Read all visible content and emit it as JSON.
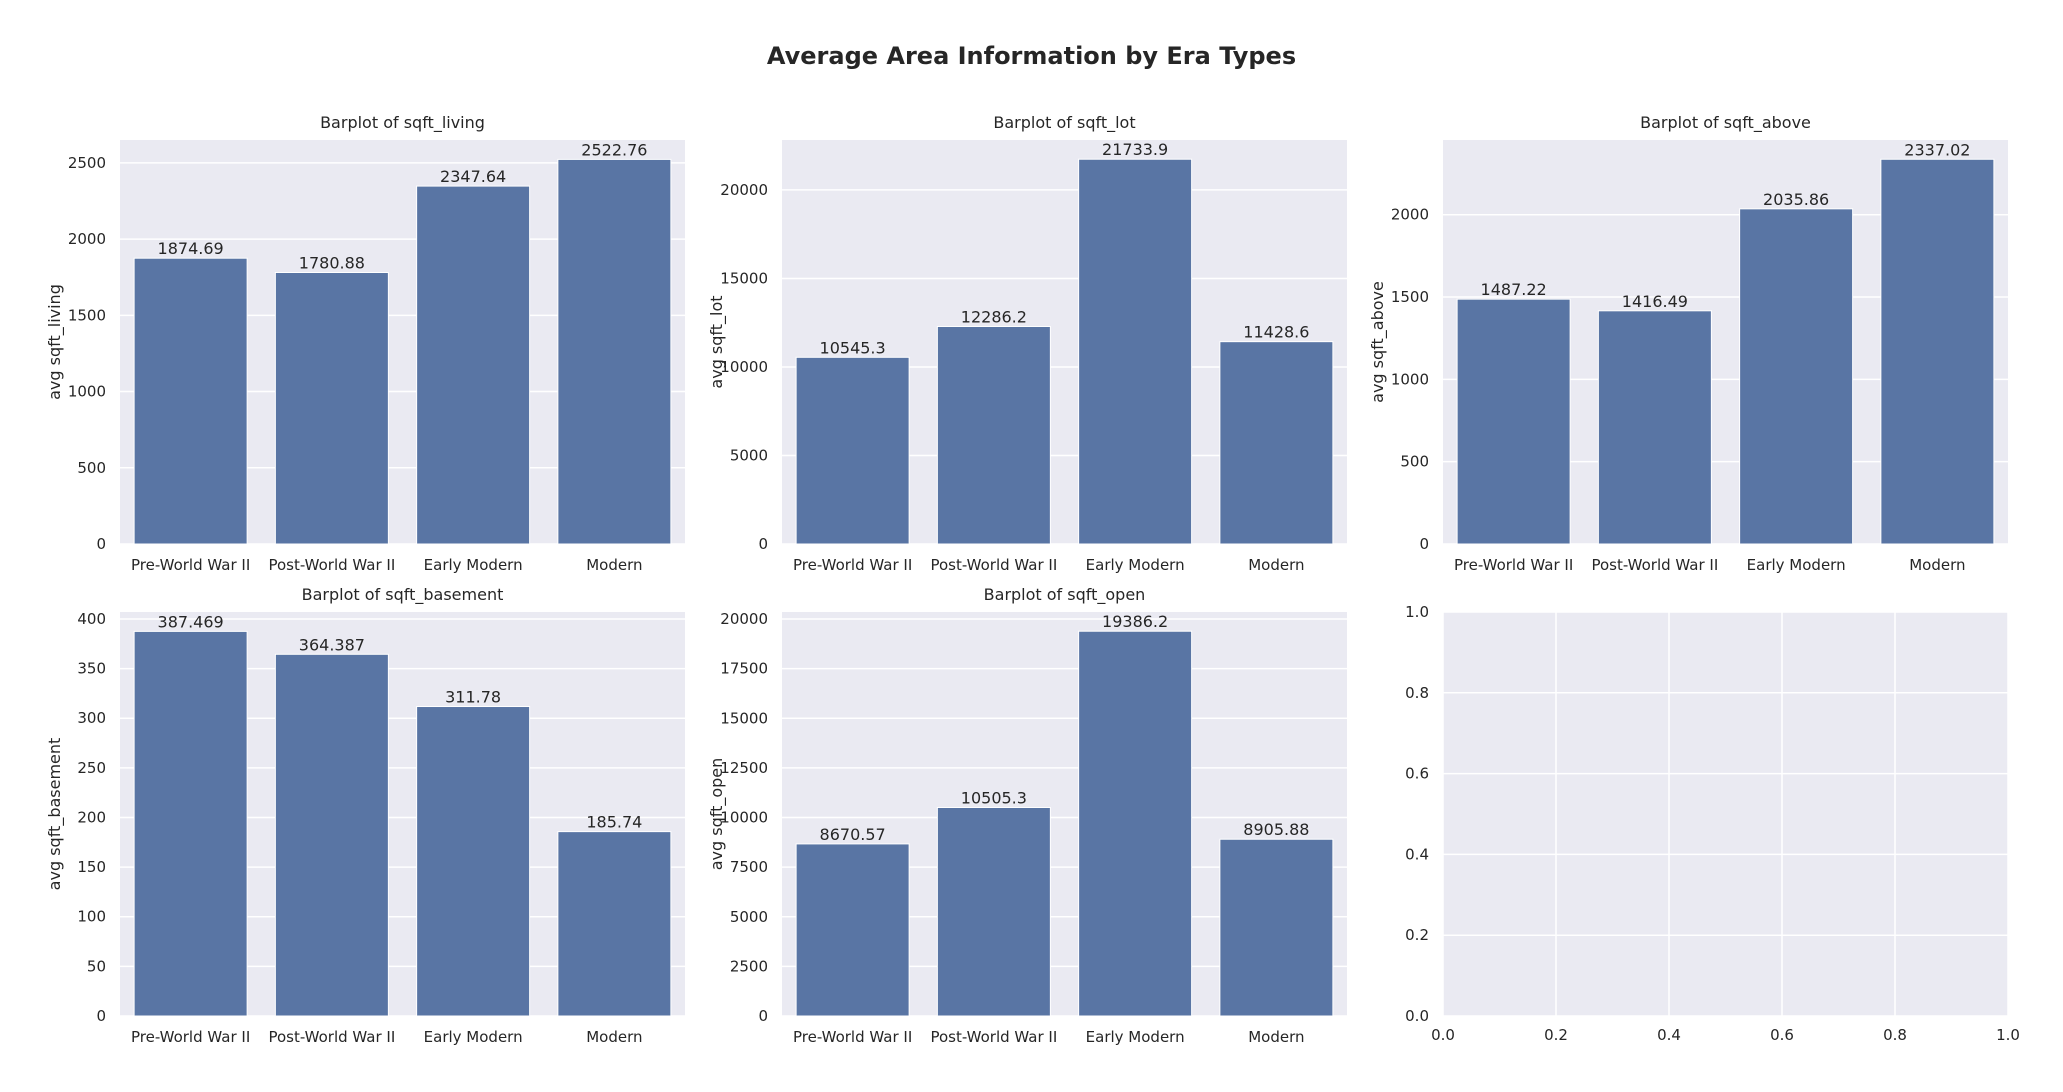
{
  "figure": {
    "title": "Average Area Information by Era Types"
  },
  "colors": {
    "bar": "#5975a4",
    "plot_background": "#eaeaf2",
    "grid": "#ffffff"
  },
  "chart_data": [
    {
      "type": "bar",
      "title": "Barplot of sqft_living",
      "xlabel": "",
      "ylabel": "avg sqft_living",
      "categories": [
        "Pre-World War II",
        "Post-World War II",
        "Early Modern",
        "Modern"
      ],
      "values": [
        1874.69,
        1780.88,
        2347.64,
        2522.76
      ],
      "data_labels": [
        "1874.69",
        "1780.88",
        "2347.64",
        "2522.76"
      ],
      "ylim": [
        0,
        2650
      ],
      "yticks": [
        0,
        500,
        1000,
        1500,
        2000,
        2500
      ],
      "grid": true
    },
    {
      "type": "bar",
      "title": "Barplot of sqft_lot",
      "xlabel": "",
      "ylabel": "avg sqft_lot",
      "categories": [
        "Pre-World War II",
        "Post-World War II",
        "Early Modern",
        "Modern"
      ],
      "values": [
        10545.3,
        12286.2,
        21733.9,
        11428.6
      ],
      "data_labels": [
        "10545.3",
        "12286.2",
        "21733.9",
        "11428.6"
      ],
      "ylim": [
        0,
        22820
      ],
      "yticks": [
        0,
        5000,
        10000,
        15000,
        20000
      ],
      "grid": true
    },
    {
      "type": "bar",
      "title": "Barplot of sqft_above",
      "xlabel": "",
      "ylabel": "avg sqft_above",
      "categories": [
        "Pre-World War II",
        "Post-World War II",
        "Early Modern",
        "Modern"
      ],
      "values": [
        1487.22,
        1416.49,
        2035.86,
        2337.02
      ],
      "data_labels": [
        "1487.22",
        "1416.49",
        "2035.86",
        "2337.02"
      ],
      "ylim": [
        0,
        2454
      ],
      "yticks": [
        0,
        500,
        1000,
        1500,
        2000
      ],
      "grid": true
    },
    {
      "type": "bar",
      "title": "Barplot of sqft_basement",
      "xlabel": "",
      "ylabel": "avg sqft_basement",
      "categories": [
        "Pre-World War II",
        "Post-World War II",
        "Early Modern",
        "Modern"
      ],
      "values": [
        387.469,
        364.387,
        311.78,
        185.74
      ],
      "data_labels": [
        "387.469",
        "364.387",
        "311.78",
        "185.74"
      ],
      "ylim": [
        0,
        407
      ],
      "yticks": [
        0,
        50,
        100,
        150,
        200,
        250,
        300,
        350,
        400
      ],
      "grid": true
    },
    {
      "type": "bar",
      "title": "Barplot of sqft_open",
      "xlabel": "",
      "ylabel": "avg sqft_open",
      "categories": [
        "Pre-World War II",
        "Post-World War II",
        "Early Modern",
        "Modern"
      ],
      "values": [
        8670.57,
        10505.3,
        19386.2,
        8905.88
      ],
      "data_labels": [
        "8670.57",
        "10505.3",
        "19386.2",
        "8905.88"
      ],
      "ylim": [
        0,
        20355
      ],
      "yticks": [
        0,
        2500,
        5000,
        7500,
        10000,
        12500,
        15000,
        17500,
        20000
      ],
      "grid": true
    },
    {
      "type": "empty",
      "title": "",
      "xlabel": "",
      "ylabel": "",
      "xlim": [
        0,
        1
      ],
      "ylim": [
        0,
        1
      ],
      "xticks": [
        "0.0",
        "0.2",
        "0.4",
        "0.6",
        "0.8",
        "1.0"
      ],
      "yticks": [
        "0.0",
        "0.2",
        "0.4",
        "0.6",
        "0.8",
        "1.0"
      ],
      "grid": true
    }
  ]
}
